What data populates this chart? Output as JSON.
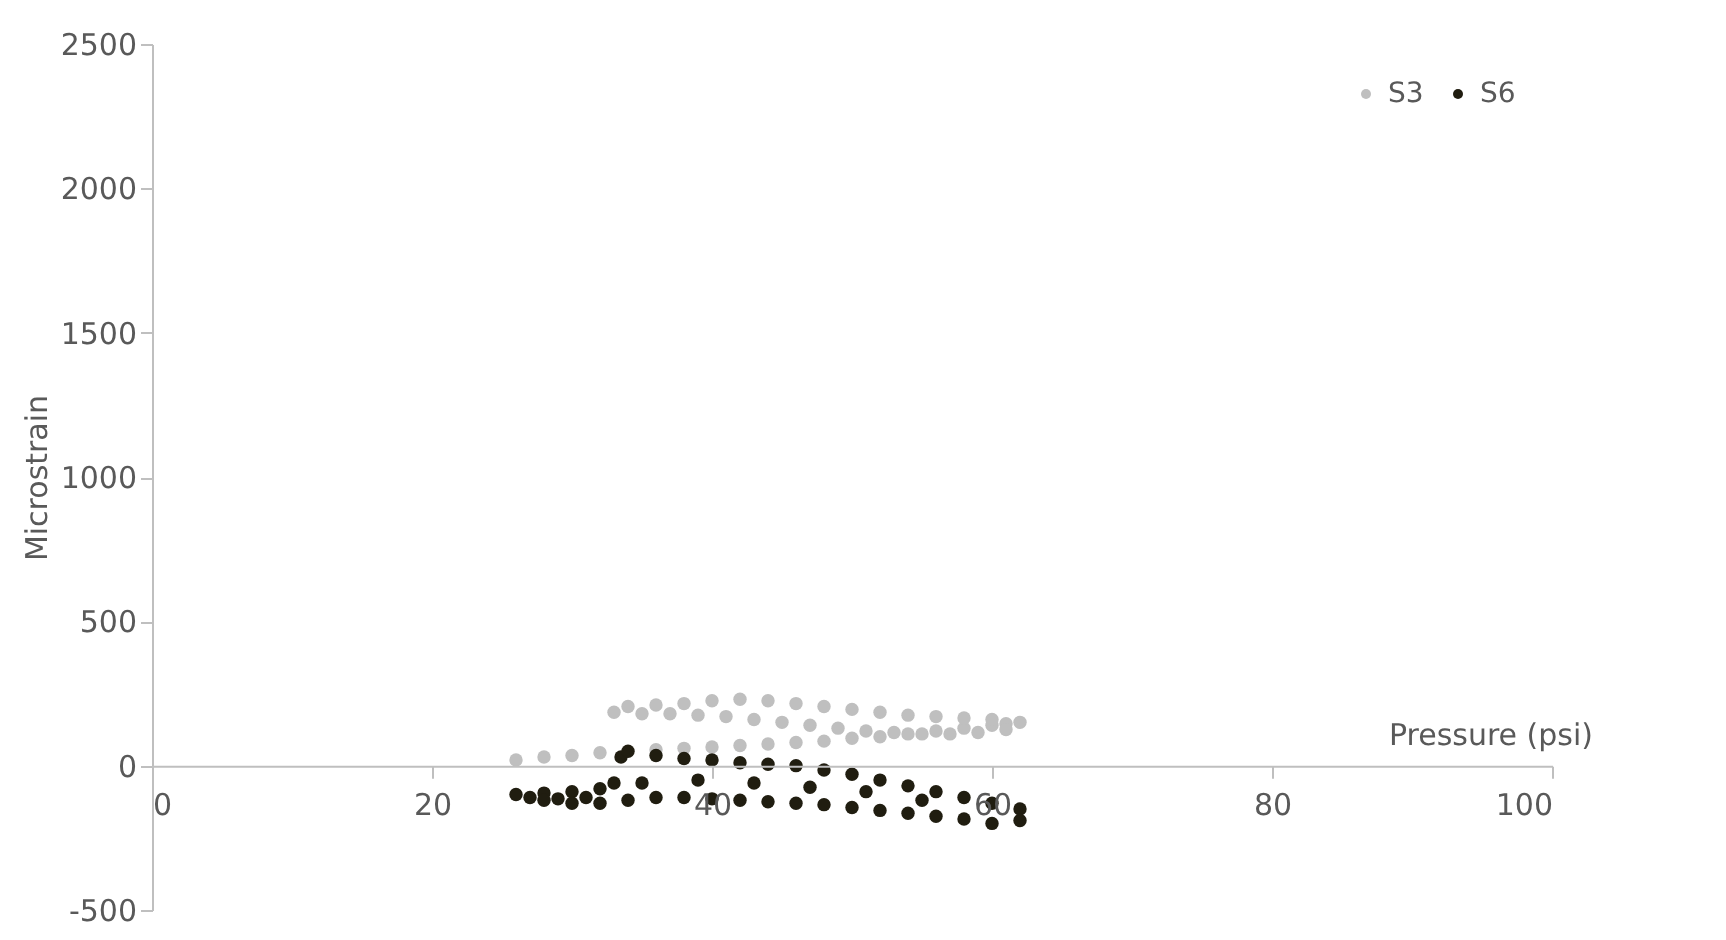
{
  "chart_data": {
    "type": "scatter",
    "xlabel": "Pressure (psi)",
    "ylabel": "Microstrain",
    "xlim": [
      0,
      100
    ],
    "xticks": [
      0,
      20,
      40,
      60,
      80,
      100
    ],
    "ylim": [
      -500,
      2500
    ],
    "yticks": [
      -500,
      0,
      500,
      1000,
      1500,
      2000,
      2500
    ],
    "grid": false,
    "legend": "top right",
    "marker": "circle",
    "series": [
      {
        "name": "S3",
        "color": "#bfbfbf",
        "x": [
          26,
          28,
          30,
          32,
          36,
          38,
          40,
          42,
          44,
          46,
          48,
          50,
          52,
          54,
          56,
          58,
          60,
          61,
          62,
          60,
          58,
          56,
          54,
          52,
          50,
          48,
          46,
          44,
          42,
          40,
          38,
          36,
          34,
          33,
          35,
          37,
          39,
          41,
          43,
          45,
          47,
          49,
          51,
          53,
          55,
          57,
          59,
          61
        ],
        "values": [
          20,
          30,
          35,
          45,
          55,
          60,
          65,
          70,
          75,
          80,
          85,
          95,
          100,
          110,
          120,
          130,
          140,
          145,
          150,
          160,
          165,
          170,
          175,
          185,
          195,
          205,
          215,
          225,
          230,
          225,
          215,
          210,
          205,
          185,
          180,
          180,
          175,
          170,
          160,
          150,
          140,
          130,
          120,
          115,
          110,
          110,
          115,
          125
        ]
      },
      {
        "name": "S6",
        "color": "#201d10",
        "x": [
          26,
          28,
          30,
          32,
          33,
          33.5,
          34,
          36,
          38,
          40,
          42,
          44,
          46,
          48,
          50,
          52,
          54,
          56,
          58,
          60,
          62,
          62,
          60,
          58,
          56,
          54,
          52,
          50,
          48,
          46,
          44,
          42,
          40,
          38,
          36,
          34,
          32,
          30,
          28,
          27,
          29,
          31,
          35,
          39,
          43,
          47,
          51,
          55
        ],
        "values": [
          -100,
          -95,
          -90,
          -80,
          -60,
          30,
          50,
          35,
          25,
          20,
          10,
          5,
          0,
          -15,
          -30,
          -50,
          -70,
          -90,
          -110,
          -130,
          -150,
          -190,
          -200,
          -185,
          -175,
          -165,
          -155,
          -145,
          -135,
          -130,
          -125,
          -120,
          -115,
          -110,
          -110,
          -120,
          -130,
          -130,
          -120,
          -110,
          -115,
          -110,
          -60,
          -50,
          -60,
          -75,
          -90,
          -120
        ]
      }
    ]
  }
}
